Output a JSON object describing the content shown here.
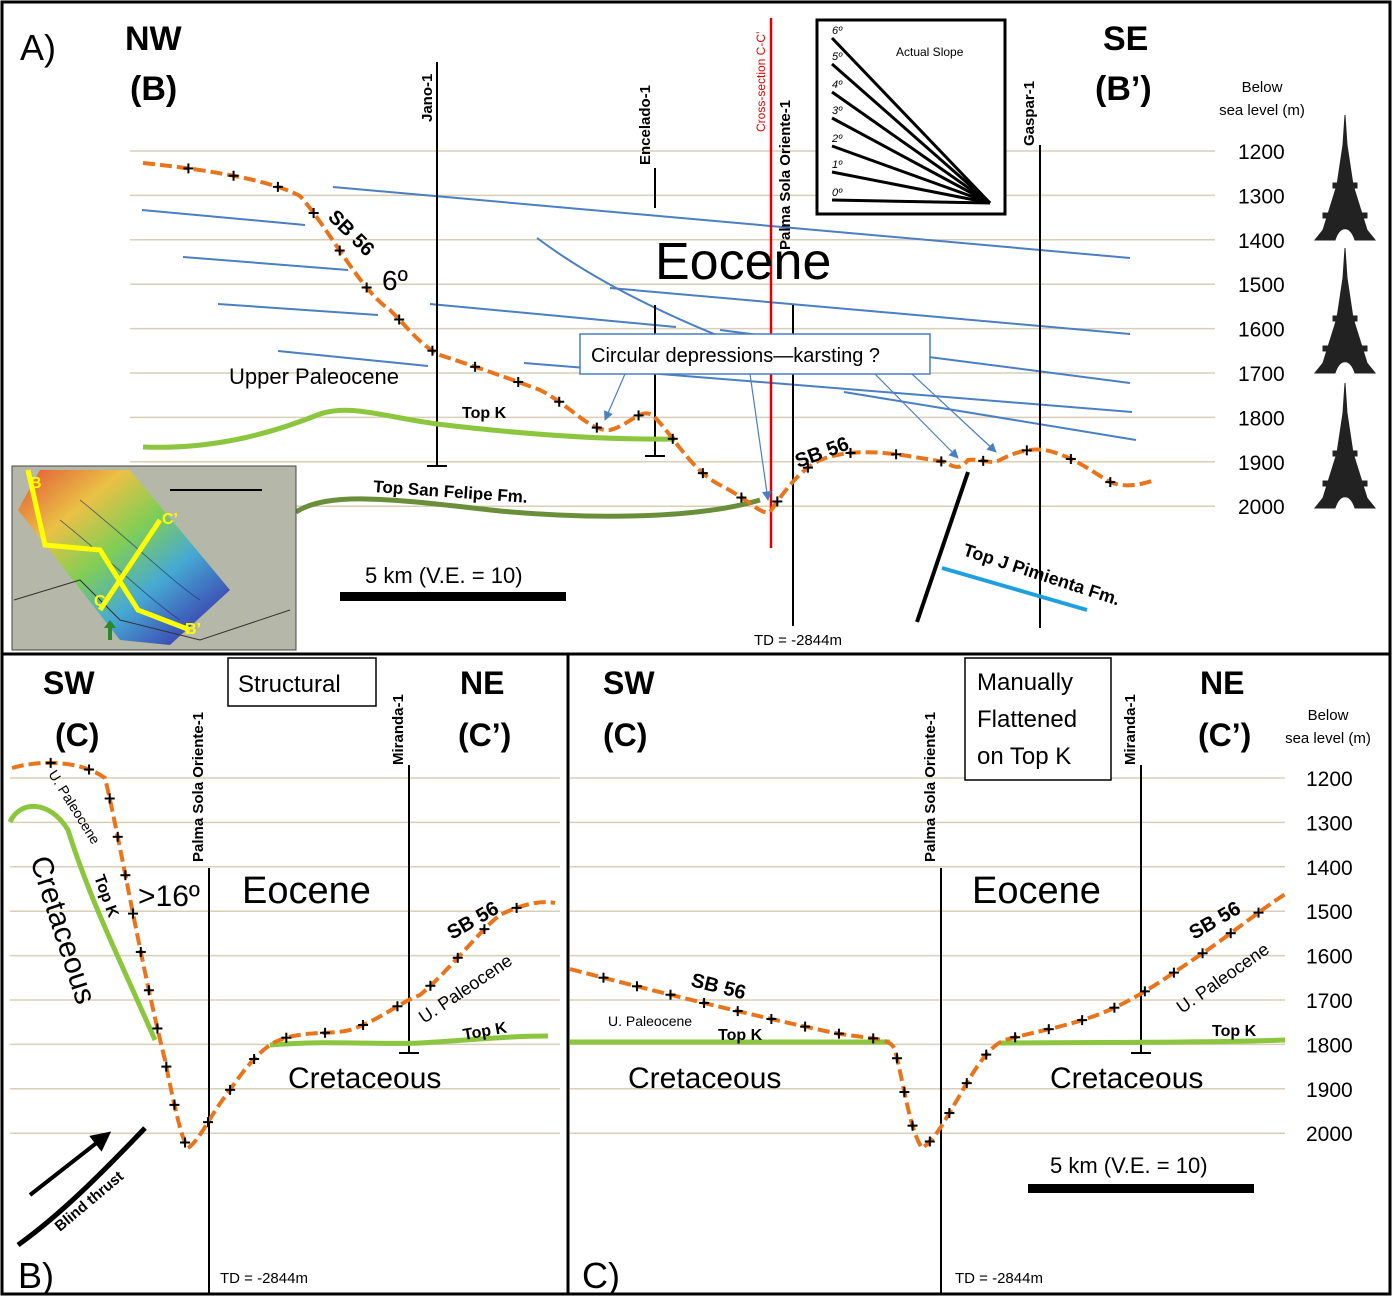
{
  "panel_a": {
    "label": "A)",
    "nw": "NW",
    "nw_sub": "(B)",
    "se": "SE",
    "se_sub": "(B’)",
    "wells": [
      "Jano-1",
      "Encelado-1",
      "Palma Sola Oriente-1",
      "Gaspar-1"
    ],
    "cross_section": "Cross-section C-C’",
    "eocene": "Eocene",
    "upper_paleocene": "Upper Paleocene",
    "top_k": "Top K",
    "sb56_left": "SB 56",
    "sb56_right": "SB 56",
    "angle": "6º",
    "top_san_felipe": "Top San Felipe Fm.",
    "top_j_pimienta": "Top J Pimienta Fm.",
    "callout": "Circular depressions—karsting ?",
    "scale": "5 km (V.E. = 10)",
    "td": "TD = -2844m",
    "depth_header_1": "Below",
    "depth_header_2": "sea level (m)",
    "depths": [
      "1200",
      "1300",
      "1400",
      "1500",
      "1600",
      "1700",
      "1800",
      "1900",
      "2000"
    ],
    "inset_slope_title": "Actual Slope",
    "slope_labels": [
      "6º",
      "5º",
      "4º",
      "3º",
      "2º",
      "1º",
      "0º"
    ],
    "inset_map_labels": [
      "B",
      "C’",
      "C",
      "B’"
    ]
  },
  "panel_b": {
    "label": "B)",
    "sw": "SW",
    "sw_sub": "(C)",
    "ne": "NE",
    "ne_sub": "(C’)",
    "mode": "Structural",
    "wells": [
      "Palma Sola Oriente-1",
      "Miranda-1"
    ],
    "eocene": "Eocene",
    "cretaceous_left": "Cretaceous",
    "cretaceous": "Cretaceous",
    "u_paleocene_left": "U. Paleocene",
    "u_paleocene_right": "U. Paleocene",
    "top_k_left": "Top K",
    "top_k_right": "Top K",
    "sb56": "SB 56",
    "angle": ">16º",
    "blind_thrust": "Blind thrust",
    "td": "TD = -2844m"
  },
  "panel_c": {
    "label": "C)",
    "sw": "SW",
    "sw_sub": "(C)",
    "ne": "NE",
    "ne_sub": "(C’)",
    "mode_1": "Manually",
    "mode_2": "Flattened",
    "mode_3": "on Top K",
    "wells": [
      "Palma Sola Oriente-1",
      "Miranda-1"
    ],
    "eocene": "Eocene",
    "cretaceous_left": "Cretaceous",
    "cretaceous_right": "Cretaceous",
    "u_paleocene_left": "U. Paleocene",
    "u_paleocene_right": "U. Paleocene",
    "top_k_left": "Top K",
    "top_k_right": "Top K",
    "sb56_left": "SB 56",
    "sb56_right": "SB 56",
    "scale": "5 km (V.E. = 10)",
    "td": "TD = -2844m",
    "depth_header_1": "Below",
    "depth_header_2": "sea level (m)",
    "depths": [
      "1200",
      "1300",
      "1400",
      "1500",
      "1600",
      "1700",
      "1800",
      "1900",
      "2000"
    ]
  },
  "colors": {
    "sb56": "#e8741c",
    "top_k": "#8cc63f",
    "san_felipe": "#6b8e3a",
    "eocene_lines": "#4a7fc1",
    "pimienta": "#1ea0e0",
    "cross_section": "#e00000",
    "grid": "#d9cfb8"
  }
}
